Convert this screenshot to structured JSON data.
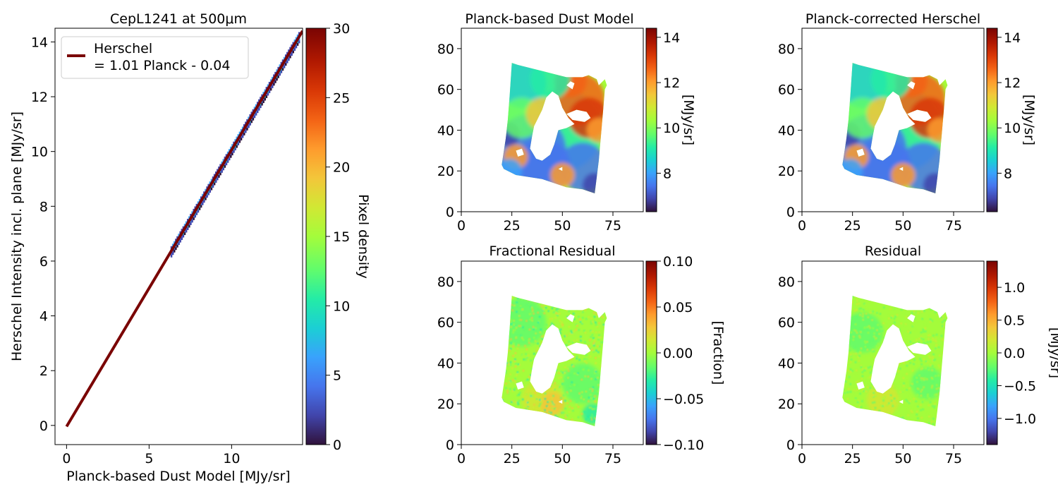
{
  "chart_data": [
    {
      "type": "scatter",
      "subtype": "2d-density-histogram",
      "title": "CepL1241 at 500μm",
      "xlabel": "Planck-based Dust Model [MJy/sr]",
      "ylabel": "Herschel Intensity incl. plane [MJy/sr]",
      "xlim": [
        -0.7,
        14.3
      ],
      "ylim": [
        -0.7,
        14.5
      ],
      "xticks": [
        "0",
        "5",
        "10"
      ],
      "yticks": [
        "0",
        "2",
        "4",
        "6",
        "8",
        "10",
        "12",
        "14"
      ],
      "grid": false,
      "legend": {
        "placement": "top-left",
        "label_line1": "Herschel",
        "label_line2": "= 1.01 Planck - 0.04"
      },
      "fit": {
        "slope": 1.01,
        "intercept": -0.04,
        "x_range": [
          0,
          14.3
        ],
        "color": "#7a0403"
      },
      "density_range": [
        6.3,
        14.1
      ],
      "colorbar": {
        "label": "Pixel density",
        "range": [
          0,
          30
        ],
        "ticks": [
          "0",
          "5",
          "10",
          "15",
          "20",
          "25",
          "30"
        ],
        "colormap": "turbo"
      }
    },
    {
      "type": "heatmap",
      "title": "Planck-based Dust Model",
      "xlim": [
        0,
        90
      ],
      "ylim": [
        0,
        90
      ],
      "xticks": [
        "0",
        "25",
        "50",
        "75"
      ],
      "yticks": [
        "0",
        "20",
        "40",
        "60",
        "80"
      ],
      "colorbar": {
        "label": "[MJy/sr]",
        "range": [
          6.3,
          14.4
        ],
        "ticks": [
          "8",
          "10",
          "12",
          "14"
        ],
        "colormap": "turbo"
      }
    },
    {
      "type": "heatmap",
      "title": "Planck-corrected Herschel",
      "xlim": [
        0,
        90
      ],
      "ylim": [
        0,
        90
      ],
      "xticks": [
        "0",
        "25",
        "50",
        "75"
      ],
      "yticks": [
        "0",
        "20",
        "40",
        "60",
        "80"
      ],
      "colorbar": {
        "label": "[MJy/sr]",
        "range": [
          6.3,
          14.4
        ],
        "ticks": [
          "8",
          "10",
          "12",
          "14"
        ],
        "colormap": "turbo"
      }
    },
    {
      "type": "heatmap",
      "title": "Fractional Residual",
      "xlim": [
        0,
        90
      ],
      "ylim": [
        0,
        90
      ],
      "xticks": [
        "0",
        "25",
        "50",
        "75"
      ],
      "yticks": [
        "0",
        "20",
        "40",
        "60",
        "80"
      ],
      "colorbar": {
        "label": "[Fraction]",
        "range": [
          -0.1,
          0.1
        ],
        "ticks": [
          "−0.10",
          "−0.05",
          "0.00",
          "0.05",
          "0.10"
        ],
        "colormap": "turbo"
      }
    },
    {
      "type": "heatmap",
      "title": "Residual",
      "xlim": [
        0,
        90
      ],
      "ylim": [
        0,
        90
      ],
      "xticks": [
        "0",
        "25",
        "50",
        "75"
      ],
      "yticks": [
        "0",
        "20",
        "40",
        "60",
        "80"
      ],
      "colorbar": {
        "label": "[MJy/sr]",
        "range": [
          -1.4,
          1.4
        ],
        "ticks": [
          "−1.0",
          "−0.5",
          "0.0",
          "0.5",
          "1.0"
        ],
        "colormap": "turbo"
      }
    }
  ]
}
